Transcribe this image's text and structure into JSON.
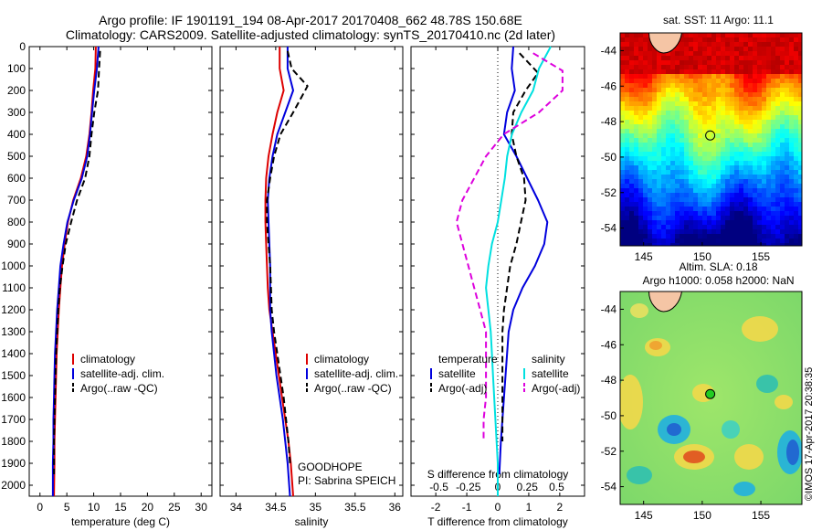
{
  "header": {
    "line1": "Argo profile: IF 1901191_194 08-Apr-2017 20170408_662 48.78S 150.68E",
    "line2": "Climatology: CARS2009. Satellite-adjusted climatology: synTS_20170410.nc (2d later)"
  },
  "colors": {
    "climatology": "#dd0000",
    "satellite": "#0000dd",
    "argo": "#000000",
    "sat_salinity": "#00e0e0",
    "argo_adj_salinity": "#dd00dd",
    "float_marker": "#22cc22"
  },
  "chart_data": [
    {
      "type": "line",
      "id": "temperature",
      "xlabel": "temperature (deg C)",
      "ylabel": "",
      "xlim": [
        -2,
        32
      ],
      "ylim": [
        2050,
        0
      ],
      "xticks": [
        0,
        5,
        10,
        15,
        20,
        25,
        30
      ],
      "xtick_labels": [
        "0",
        "5",
        "10",
        "15",
        "20",
        "25",
        "30"
      ],
      "yticks": [
        0,
        100,
        200,
        300,
        400,
        500,
        600,
        700,
        800,
        900,
        1000,
        1100,
        1200,
        1300,
        1400,
        1500,
        1600,
        1700,
        1800,
        1900,
        2000
      ],
      "ytick_labels": [
        "0",
        "100",
        "200",
        "300",
        "400",
        "500",
        "600",
        "700",
        "800",
        "900",
        "1000",
        "1100",
        "1200",
        "1300",
        "1400",
        "1500",
        "1600",
        "1700",
        "1800",
        "1900",
        "2000"
      ],
      "legend": [
        "climatology",
        "satellite-adj. clim.",
        "Argo(..raw -QC)"
      ],
      "legend_placement": "lower-center",
      "series": [
        {
          "name": "climatology",
          "style": "solid",
          "color": "#dd0000",
          "x": [
            10.4,
            10.3,
            9.9,
            9.6,
            9.2,
            8.6,
            7.6,
            6.2,
            5.2,
            4.6,
            4.1,
            3.8,
            3.5,
            3.3,
            3.1,
            3.0,
            2.9,
            2.8,
            2.7,
            2.7,
            2.6
          ],
          "y": [
            0,
            100,
            200,
            300,
            400,
            500,
            600,
            700,
            800,
            900,
            1000,
            1100,
            1200,
            1300,
            1400,
            1500,
            1600,
            1700,
            1800,
            1900,
            2050
          ]
        },
        {
          "name": "satellite-adj. clim.",
          "style": "solid",
          "color": "#0000dd",
          "x": [
            10.9,
            10.6,
            10.1,
            9.7,
            9.3,
            8.8,
            7.8,
            6.3,
            5.1,
            4.4,
            3.8,
            3.5,
            3.2,
            3.0,
            2.8,
            2.7,
            2.6,
            2.5,
            2.5,
            2.4,
            2.4
          ],
          "y": [
            0,
            100,
            200,
            300,
            400,
            500,
            600,
            700,
            800,
            900,
            1000,
            1100,
            1200,
            1300,
            1400,
            1500,
            1600,
            1700,
            1800,
            1900,
            2050
          ]
        },
        {
          "name": "Argo(..raw -QC)",
          "style": "dashed",
          "color": "#000000",
          "x": [
            11.2,
            11.0,
            10.8,
            10.1,
            9.6,
            9.2,
            8.4,
            6.9,
            5.8,
            4.8,
            4.2,
            3.7,
            3.4,
            3.2,
            3.0,
            2.9,
            2.8,
            2.7,
            2.6,
            2.6
          ],
          "y": [
            20,
            100,
            200,
            300,
            400,
            500,
            600,
            700,
            800,
            900,
            1000,
            1100,
            1200,
            1300,
            1400,
            1500,
            1600,
            1700,
            1800,
            1950
          ]
        }
      ]
    },
    {
      "type": "line",
      "id": "salinity",
      "xlabel": "salinity",
      "ylabel": "",
      "xlim": [
        33.8,
        36.1
      ],
      "ylim": [
        2050,
        0
      ],
      "xticks": [
        34,
        34.5,
        35,
        35.5,
        36
      ],
      "xtick_labels": [
        "34",
        "34.5",
        "35",
        "35.5",
        "36"
      ],
      "legend": [
        "climatology",
        "satellite-adj. clim.",
        "Argo(..raw -QC)"
      ],
      "legend_placement": "lower-right",
      "annotations": [
        "GOODHOPE",
        "PI: Sabrina SPEICH"
      ],
      "series": [
        {
          "name": "climatology",
          "style": "solid",
          "color": "#dd0000",
          "x": [
            34.55,
            34.55,
            34.6,
            34.52,
            34.46,
            34.41,
            34.38,
            34.37,
            34.37,
            34.38,
            34.39,
            34.4,
            34.42,
            34.46,
            34.5,
            34.54,
            34.58,
            34.62,
            34.66,
            34.69,
            34.72
          ],
          "y": [
            0,
            100,
            200,
            300,
            400,
            500,
            600,
            700,
            800,
            900,
            1000,
            1100,
            1200,
            1300,
            1400,
            1500,
            1600,
            1700,
            1800,
            1900,
            2050
          ]
        },
        {
          "name": "satellite-adj. clim.",
          "style": "solid",
          "color": "#0000dd",
          "x": [
            34.65,
            34.65,
            34.72,
            34.62,
            34.52,
            34.46,
            34.42,
            34.4,
            34.41,
            34.42,
            34.43,
            34.43,
            34.43,
            34.45,
            34.48,
            34.51,
            34.55,
            34.59,
            34.62,
            34.65,
            34.68
          ],
          "y": [
            0,
            100,
            200,
            300,
            400,
            500,
            600,
            700,
            800,
            900,
            1000,
            1100,
            1200,
            1300,
            1400,
            1500,
            1600,
            1700,
            1800,
            1900,
            2050
          ]
        },
        {
          "name": "Argo(..raw -QC)",
          "style": "dashed",
          "color": "#000000",
          "x": [
            34.65,
            34.7,
            34.9,
            34.72,
            34.56,
            34.48,
            34.43,
            34.39,
            34.39,
            34.41,
            34.43,
            34.44,
            34.45,
            34.48,
            34.52,
            34.56,
            34.6,
            34.63,
            34.66,
            34.68
          ],
          "y": [
            20,
            100,
            180,
            300,
            400,
            500,
            600,
            700,
            800,
            900,
            1000,
            1100,
            1200,
            1300,
            1400,
            1500,
            1600,
            1700,
            1800,
            1900
          ]
        }
      ]
    },
    {
      "type": "line",
      "id": "differences",
      "xlabel": "T difference from climatology",
      "xlabel2": "S difference from climatology",
      "xlim": [
        -2.8,
        2.8
      ],
      "ylim": [
        2050,
        0
      ],
      "xticks": [
        -2,
        -1,
        0,
        1,
        2
      ],
      "xtick_labels": [
        "-2",
        "-1",
        "0",
        "1",
        "2"
      ],
      "xticks2": [
        -0.5,
        -0.25,
        0,
        0.25,
        0.5
      ],
      "xtick2_labels": [
        "-0.5",
        "-0.25",
        "0",
        "0.25",
        "0.5"
      ],
      "legend_groups": [
        {
          "title": "temperature",
          "items": [
            "satellite",
            "Argo(-adj)"
          ]
        },
        {
          "title": "salinity",
          "items": [
            "satellite",
            "Argo(-adj)"
          ]
        }
      ],
      "legend_placement": "lower-center",
      "series": [
        {
          "name": "satellite",
          "group": "temperature",
          "style": "solid",
          "color": "#0000dd",
          "x": [
            0.5,
            0.45,
            0.55,
            0.3,
            0.2,
            0.6,
            0.95,
            1.3,
            1.6,
            1.5,
            1.2,
            0.8,
            0.5,
            0.35,
            0.3,
            0.25,
            0.2,
            0.15,
            0.1,
            0.05
          ],
          "y": [
            0,
            100,
            200,
            300,
            400,
            500,
            600,
            700,
            800,
            900,
            1000,
            1100,
            1200,
            1300,
            1400,
            1500,
            1600,
            1700,
            1800,
            1950
          ]
        },
        {
          "name": "Argo(-adj)",
          "group": "temperature",
          "style": "dashed",
          "color": "#000000",
          "x": [
            0.7,
            1.3,
            0.9,
            0.5,
            0.45,
            0.6,
            0.85,
            0.9,
            0.75,
            0.6,
            0.4,
            0.3,
            0.2,
            0.15,
            0.15,
            0.15,
            0.15,
            0.15,
            0.15
          ],
          "y": [
            30,
            120,
            200,
            300,
            400,
            500,
            600,
            700,
            800,
            900,
            1000,
            1100,
            1200,
            1300,
            1400,
            1500,
            1600,
            1700,
            1800
          ]
        },
        {
          "name": "satellite",
          "group": "salinity",
          "style": "solid",
          "color": "#00e0e0",
          "x": [
            0.45,
            0.35,
            0.3,
            0.2,
            0.12,
            0.08,
            0.06,
            0.03,
            0.0,
            -0.05,
            -0.08,
            -0.1,
            -0.08,
            -0.06,
            -0.05,
            -0.04,
            -0.03,
            -0.02,
            -0.01,
            0.0,
            0.0
          ],
          "y": [
            0,
            100,
            200,
            300,
            400,
            500,
            600,
            700,
            800,
            900,
            1000,
            1100,
            1200,
            1300,
            1400,
            1500,
            1600,
            1700,
            1800,
            1900,
            2050
          ]
        },
        {
          "name": "Argo(-adj)",
          "group": "salinity",
          "style": "dashed",
          "color": "#dd00dd",
          "x": [
            0.3,
            0.55,
            0.55,
            0.35,
            0.05,
            -0.1,
            -0.2,
            -0.3,
            -0.35,
            -0.3,
            -0.25,
            -0.2,
            -0.15,
            -0.1,
            -0.1,
            -0.1,
            -0.1,
            -0.12,
            -0.12
          ],
          "y": [
            30,
            110,
            200,
            300,
            400,
            500,
            600,
            700,
            800,
            900,
            1000,
            1100,
            1200,
            1300,
            1400,
            1500,
            1600,
            1700,
            1800
          ]
        }
      ]
    },
    {
      "type": "heatmap",
      "id": "sst-map",
      "title": "sat. SST: 11 Argo: 11.1",
      "xlim": [
        143,
        158.5
      ],
      "ylim": [
        -55,
        -43
      ],
      "xticks": [
        145,
        150,
        155
      ],
      "xtick_labels": [
        "145",
        "150",
        "155"
      ],
      "yticks": [
        -44,
        -46,
        -48,
        -50,
        -52,
        -54
      ],
      "ytick_labels": [
        "-44",
        "-46",
        "-48",
        "-50",
        "-52",
        "-54"
      ],
      "float_position": [
        150.68,
        -48.78
      ],
      "colormap": "jet",
      "description_bands": [
        "dark red north",
        "orange/yellow",
        "green centre",
        "cyan",
        "dark blue south"
      ]
    },
    {
      "type": "heatmap",
      "id": "sla-map",
      "title": "Altim. SLA: 0.18",
      "title2": "Argo h1000: 0.058 h2000: NaN",
      "xlim": [
        143,
        158.5
      ],
      "ylim": [
        -55,
        -43
      ],
      "xticks": [
        145,
        150,
        155
      ],
      "xtick_labels": [
        "145",
        "150",
        "155"
      ],
      "yticks": [
        -44,
        -46,
        -48,
        -50,
        -52,
        -54
      ],
      "ytick_labels": [
        "-44",
        "-46",
        "-48",
        "-50",
        "-52",
        "-54"
      ],
      "float_position": [
        150.68,
        -48.78
      ],
      "colormap": "jet"
    }
  ],
  "stamp": "©IMOS 17-Apr-2017 20:38:35"
}
